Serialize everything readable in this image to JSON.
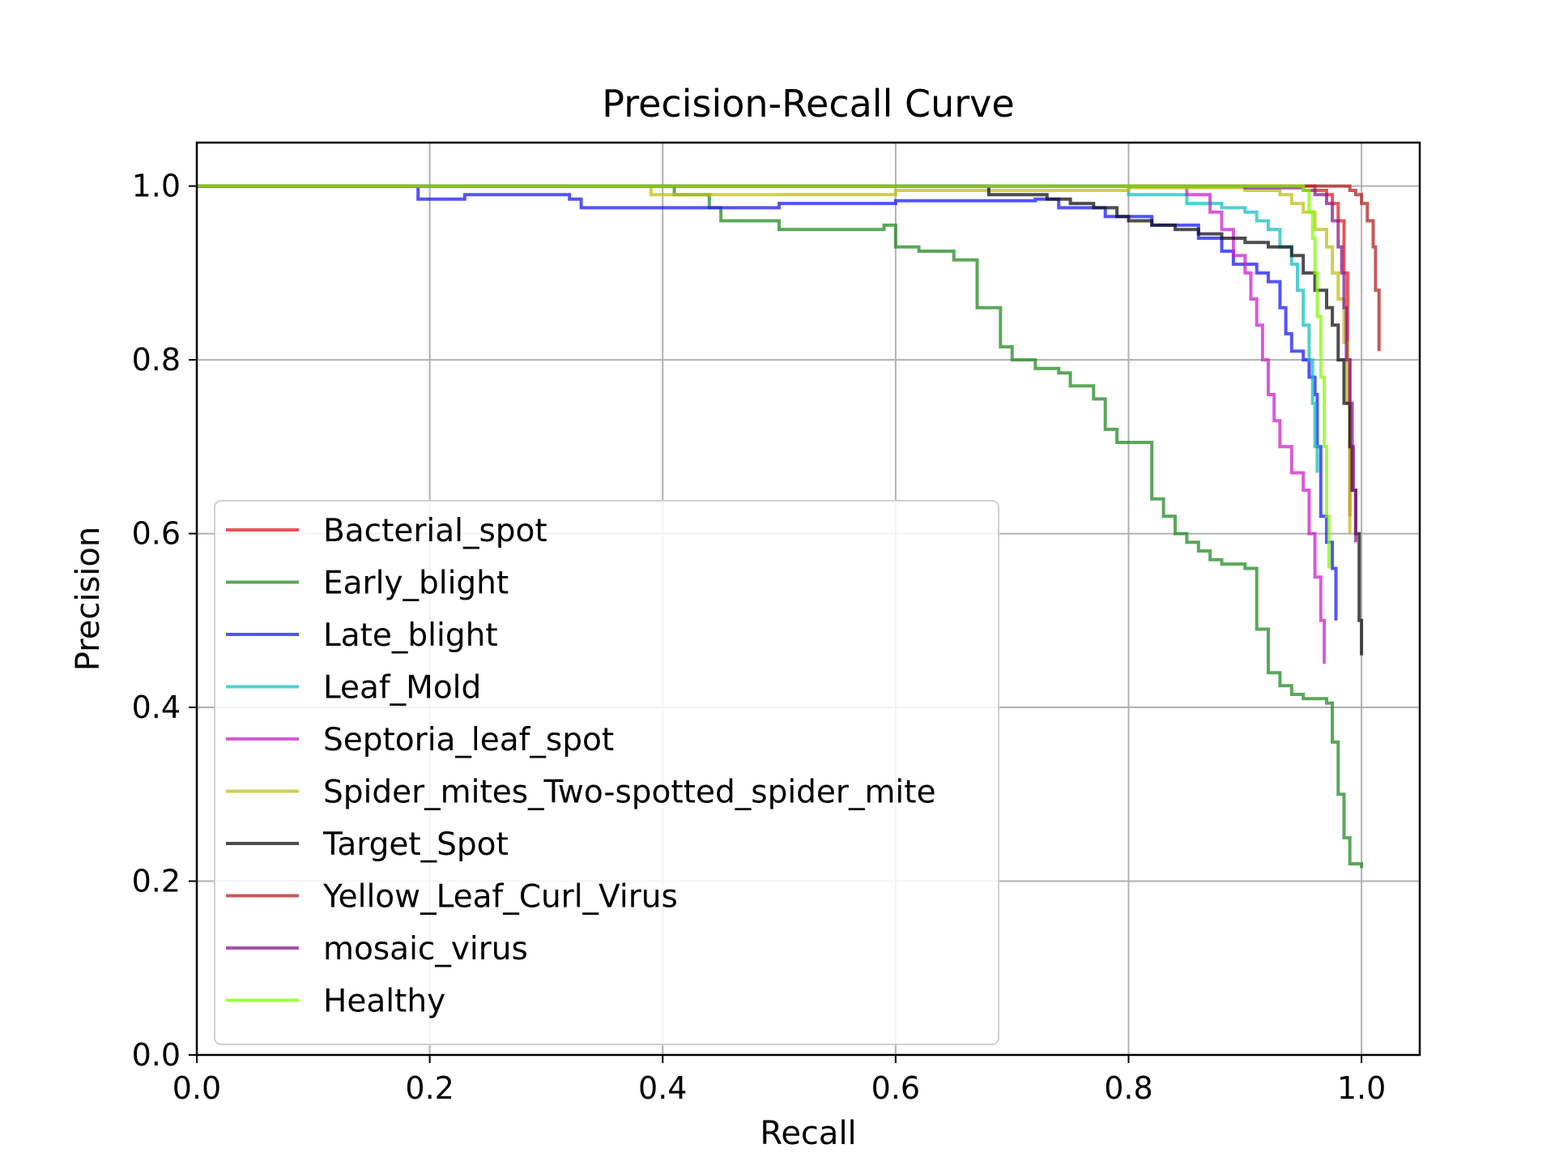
{
  "chart_data": {
    "type": "line",
    "title": "Precision-Recall Curve",
    "xlabel": "Recall",
    "ylabel": "Precision",
    "xlim": [
      0.0,
      1.05
    ],
    "ylim": [
      0.0,
      1.05
    ],
    "xticks": [
      "0.0",
      "0.2",
      "0.4",
      "0.6",
      "0.8",
      "1.0"
    ],
    "yticks": [
      "0.0",
      "0.2",
      "0.4",
      "0.6",
      "0.8",
      "1.0"
    ],
    "grid": true,
    "legend_position": "lower-left",
    "series": [
      {
        "name": "Bacterial_spot",
        "color": "#e41a1c",
        "points": [
          [
            0.0,
            1.0
          ],
          [
            0.9,
            1.0
          ],
          [
            0.95,
            1.0
          ],
          [
            0.96,
            0.995
          ],
          [
            0.97,
            0.99
          ],
          [
            0.975,
            0.98
          ],
          [
            0.98,
            0.96
          ],
          [
            0.985,
            0.9
          ],
          [
            0.988,
            0.8
          ],
          [
            0.99,
            0.72
          ],
          [
            0.99,
            0.62
          ]
        ]
      },
      {
        "name": "Early_blight",
        "color": "#228b22",
        "points": [
          [
            0.0,
            1.0
          ],
          [
            0.39,
            1.0
          ],
          [
            0.41,
            0.99
          ],
          [
            0.44,
            0.975
          ],
          [
            0.45,
            0.96
          ],
          [
            0.5,
            0.95
          ],
          [
            0.59,
            0.955
          ],
          [
            0.6,
            0.93
          ],
          [
            0.62,
            0.925
          ],
          [
            0.65,
            0.915
          ],
          [
            0.67,
            0.9
          ],
          [
            0.67,
            0.86
          ],
          [
            0.69,
            0.86
          ],
          [
            0.69,
            0.815
          ],
          [
            0.7,
            0.8
          ],
          [
            0.72,
            0.79
          ],
          [
            0.74,
            0.785
          ],
          [
            0.75,
            0.77
          ],
          [
            0.77,
            0.755
          ],
          [
            0.78,
            0.74
          ],
          [
            0.78,
            0.72
          ],
          [
            0.79,
            0.705
          ],
          [
            0.8,
            0.705
          ],
          [
            0.82,
            0.7
          ],
          [
            0.82,
            0.64
          ],
          [
            0.83,
            0.62
          ],
          [
            0.84,
            0.6
          ],
          [
            0.85,
            0.59
          ],
          [
            0.86,
            0.58
          ],
          [
            0.87,
            0.57
          ],
          [
            0.88,
            0.565
          ],
          [
            0.9,
            0.56
          ],
          [
            0.91,
            0.56
          ],
          [
            0.91,
            0.49
          ],
          [
            0.92,
            0.475
          ],
          [
            0.92,
            0.44
          ],
          [
            0.93,
            0.425
          ],
          [
            0.94,
            0.415
          ],
          [
            0.95,
            0.41
          ],
          [
            0.97,
            0.405
          ],
          [
            0.975,
            0.36
          ],
          [
            0.98,
            0.3
          ],
          [
            0.985,
            0.25
          ],
          [
            0.99,
            0.22
          ],
          [
            1.0,
            0.215
          ]
        ]
      },
      {
        "name": "Late_blight",
        "color": "#1a1aff",
        "points": [
          [
            0.0,
            1.0
          ],
          [
            0.19,
            1.0
          ],
          [
            0.19,
            0.985
          ],
          [
            0.23,
            0.99
          ],
          [
            0.3,
            0.99
          ],
          [
            0.32,
            0.985
          ],
          [
            0.33,
            0.975
          ],
          [
            0.4,
            0.975
          ],
          [
            0.5,
            0.98
          ],
          [
            0.6,
            0.983
          ],
          [
            0.72,
            0.985
          ],
          [
            0.74,
            0.975
          ],
          [
            0.78,
            0.965
          ],
          [
            0.82,
            0.955
          ],
          [
            0.86,
            0.94
          ],
          [
            0.88,
            0.925
          ],
          [
            0.89,
            0.91
          ],
          [
            0.91,
            0.9
          ],
          [
            0.92,
            0.89
          ],
          [
            0.93,
            0.86
          ],
          [
            0.935,
            0.83
          ],
          [
            0.94,
            0.81
          ],
          [
            0.95,
            0.8
          ],
          [
            0.955,
            0.78
          ],
          [
            0.96,
            0.76
          ],
          [
            0.962,
            0.7
          ],
          [
            0.965,
            0.62
          ],
          [
            0.97,
            0.59
          ],
          [
            0.975,
            0.56
          ],
          [
            0.978,
            0.5
          ]
        ]
      },
      {
        "name": "Leaf_Mold",
        "color": "#17bfbf",
        "points": [
          [
            0.0,
            1.0
          ],
          [
            0.75,
            1.0
          ],
          [
            0.8,
            0.99
          ],
          [
            0.85,
            0.98
          ],
          [
            0.88,
            0.975
          ],
          [
            0.9,
            0.97
          ],
          [
            0.91,
            0.96
          ],
          [
            0.92,
            0.95
          ],
          [
            0.93,
            0.93
          ],
          [
            0.94,
            0.91
          ],
          [
            0.945,
            0.88
          ],
          [
            0.95,
            0.84
          ],
          [
            0.955,
            0.8
          ],
          [
            0.958,
            0.75
          ],
          [
            0.96,
            0.7
          ],
          [
            0.962,
            0.67
          ]
        ]
      },
      {
        "name": "Septoria_leaf_spot",
        "color": "#cc22cc",
        "points": [
          [
            0.0,
            1.0
          ],
          [
            0.8,
            1.0
          ],
          [
            0.85,
            0.99
          ],
          [
            0.87,
            0.97
          ],
          [
            0.88,
            0.95
          ],
          [
            0.89,
            0.92
          ],
          [
            0.9,
            0.9
          ],
          [
            0.905,
            0.87
          ],
          [
            0.91,
            0.84
          ],
          [
            0.915,
            0.8
          ],
          [
            0.92,
            0.76
          ],
          [
            0.925,
            0.73
          ],
          [
            0.93,
            0.7
          ],
          [
            0.94,
            0.67
          ],
          [
            0.95,
            0.65
          ],
          [
            0.955,
            0.6
          ],
          [
            0.96,
            0.55
          ],
          [
            0.965,
            0.5
          ],
          [
            0.968,
            0.45
          ]
        ]
      },
      {
        "name": "Spider_mites_Two-spotted_spider_mite",
        "color": "#bfbf17",
        "points": [
          [
            0.0,
            1.0
          ],
          [
            0.39,
            1.0
          ],
          [
            0.39,
            0.99
          ],
          [
            0.6,
            0.995
          ],
          [
            0.8,
            0.998
          ],
          [
            0.9,
            0.995
          ],
          [
            0.93,
            0.99
          ],
          [
            0.94,
            0.98
          ],
          [
            0.95,
            0.97
          ],
          [
            0.96,
            0.95
          ],
          [
            0.97,
            0.93
          ],
          [
            0.975,
            0.9
          ],
          [
            0.98,
            0.87
          ],
          [
            0.985,
            0.82
          ],
          [
            0.988,
            0.75
          ],
          [
            0.99,
            0.6
          ]
        ]
      },
      {
        "name": "Target_Spot",
        "color": "#111111",
        "points": [
          [
            0.0,
            1.0
          ],
          [
            0.68,
            1.0
          ],
          [
            0.68,
            0.99
          ],
          [
            0.73,
            0.985
          ],
          [
            0.75,
            0.98
          ],
          [
            0.77,
            0.975
          ],
          [
            0.79,
            0.965
          ],
          [
            0.8,
            0.96
          ],
          [
            0.82,
            0.955
          ],
          [
            0.84,
            0.95
          ],
          [
            0.86,
            0.945
          ],
          [
            0.88,
            0.94
          ],
          [
            0.9,
            0.935
          ],
          [
            0.92,
            0.93
          ],
          [
            0.94,
            0.92
          ],
          [
            0.95,
            0.9
          ],
          [
            0.96,
            0.88
          ],
          [
            0.97,
            0.86
          ],
          [
            0.975,
            0.84
          ],
          [
            0.98,
            0.8
          ],
          [
            0.985,
            0.75
          ],
          [
            0.99,
            0.7
          ],
          [
            0.992,
            0.65
          ],
          [
            0.995,
            0.6
          ],
          [
            0.998,
            0.5
          ],
          [
            1.0,
            0.46
          ]
        ]
      },
      {
        "name": "Yellow_Leaf_Curl_Virus",
        "color": "#b22222",
        "points": [
          [
            0.0,
            1.0
          ],
          [
            0.95,
            1.0
          ],
          [
            0.98,
            1.0
          ],
          [
            0.99,
            0.995
          ],
          [
            0.995,
            0.99
          ],
          [
            1.0,
            0.98
          ],
          [
            1.005,
            0.96
          ],
          [
            1.01,
            0.93
          ],
          [
            1.012,
            0.88
          ],
          [
            1.015,
            0.81
          ]
        ]
      },
      {
        "name": "mosaic_virus",
        "color": "#8b1a8b",
        "points": [
          [
            0.0,
            1.0
          ],
          [
            0.85,
            1.0
          ],
          [
            0.9,
            0.998
          ],
          [
            0.95,
            0.995
          ],
          [
            0.96,
            0.99
          ],
          [
            0.97,
            0.98
          ],
          [
            0.975,
            0.96
          ],
          [
            0.98,
            0.93
          ],
          [
            0.983,
            0.9
          ],
          [
            0.985,
            0.86
          ],
          [
            0.987,
            0.8
          ],
          [
            0.99,
            0.75
          ],
          [
            0.992,
            0.7
          ],
          [
            0.993,
            0.65
          ],
          [
            0.995,
            0.59
          ]
        ]
      },
      {
        "name": "Healthy",
        "color": "#7fff00",
        "points": [
          [
            0.0,
            1.0
          ],
          [
            0.9,
            1.0
          ],
          [
            0.95,
            0.995
          ],
          [
            0.955,
            0.97
          ],
          [
            0.958,
            0.94
          ],
          [
            0.96,
            0.9
          ],
          [
            0.962,
            0.85
          ],
          [
            0.965,
            0.78
          ],
          [
            0.968,
            0.7
          ],
          [
            0.97,
            0.62
          ],
          [
            0.972,
            0.56
          ]
        ]
      }
    ]
  }
}
